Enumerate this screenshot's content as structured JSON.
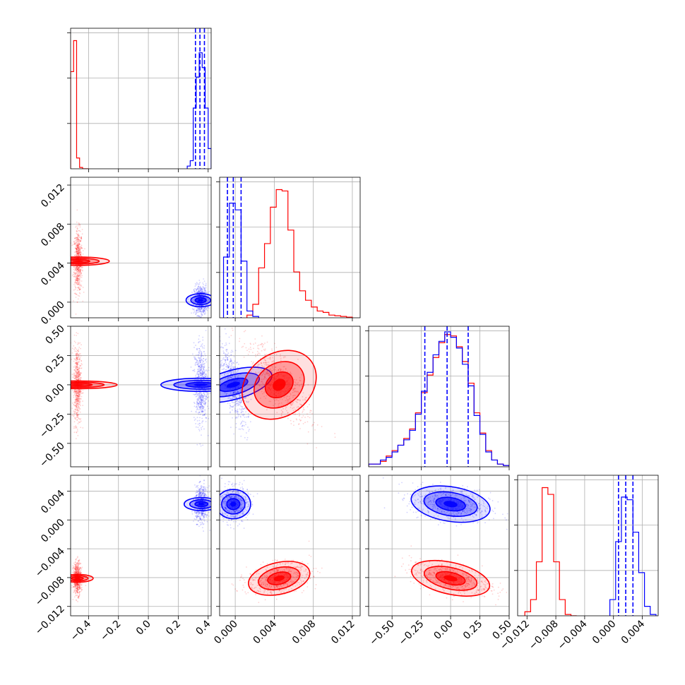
{
  "chart_data": {
    "type": "corner",
    "title": "",
    "grid": true,
    "series": [
      {
        "color": "#ff0000"
      },
      {
        "color": "#0000ff"
      }
    ],
    "parameters": [
      {
        "range": [
          -0.52,
          0.42
        ],
        "ticks": [
          -0.4,
          -0.2,
          0.0,
          0.2,
          0.4
        ],
        "tick_labels": [
          "−0.4",
          "−0.2",
          "0.0",
          "0.2",
          "0.4"
        ],
        "tick_labels_shown": true
      },
      {
        "range": [
          -0.0016,
          0.0128
        ],
        "ticks": [
          0.0,
          0.004,
          0.008,
          0.012
        ],
        "tick_labels": [
          "0.000",
          "0.004",
          "0.008",
          "0.012"
        ],
        "tick_labels_shown": true
      },
      {
        "range": [
          -0.7,
          0.5
        ],
        "ticks": [
          -0.5,
          -0.25,
          0.0,
          0.25,
          0.5
        ],
        "tick_labels": [
          "−0.50",
          "−0.25",
          "0.00",
          "0.25",
          "0.50"
        ],
        "tick_labels_shown": true
      },
      {
        "range": [
          -0.0133,
          0.0062
        ],
        "ticks": [
          -0.012,
          -0.008,
          -0.004,
          0.0,
          0.004
        ],
        "tick_labels": [
          "−0.012",
          "−0.008",
          "−0.004",
          "0.000",
          "0.004"
        ],
        "tick_labels_shown": true
      }
    ],
    "histograms": [
      {
        "param": 0,
        "ymax": 1.0,
        "series": [
          {
            "color": "#ff0000",
            "bins": [
              -0.52,
              -0.5,
              -0.48,
              -0.46,
              -0.44,
              -0.42,
              -0.4
            ],
            "values": [
              0.72,
              0.95,
              0.08,
              0.01,
              0.0,
              0.0
            ]
          },
          {
            "color": "#0000ff",
            "bins": [
              0.26,
              0.28,
              0.3,
              0.32,
              0.34,
              0.36,
              0.38,
              0.4,
              0.42
            ],
            "values": [
              0.02,
              0.06,
              0.45,
              0.68,
              0.86,
              0.75,
              0.45,
              0.15
            ]
          }
        ],
        "quantiles": [
          0.315,
          0.345,
          0.375
        ],
        "quantile_color": "#0000ff"
      },
      {
        "param": 1,
        "ymax": 1.0,
        "series": [
          {
            "color": "#ff0000",
            "bins": [
              0.0012,
              0.0018,
              0.0024,
              0.003,
              0.0036,
              0.0042,
              0.0048,
              0.0054,
              0.006,
              0.0066,
              0.0072,
              0.0078,
              0.0084,
              0.009,
              0.0096,
              0.0102,
              0.0108,
              0.0114,
              0.012
            ],
            "values": [
              0.02,
              0.1,
              0.37,
              0.55,
              0.82,
              0.95,
              0.94,
              0.65,
              0.34,
              0.2,
              0.13,
              0.08,
              0.05,
              0.04,
              0.02,
              0.015,
              0.01,
              0.005
            ]
          },
          {
            "color": "#0000ff",
            "bins": [
              -0.0012,
              -0.0006,
              0.0,
              0.0006,
              0.0012,
              0.0018,
              0.0024
            ],
            "values": [
              0.45,
              0.85,
              0.8,
              0.42,
              0.05,
              0.01
            ]
          }
        ],
        "quantiles": [
          -0.0008,
          -0.0002,
          0.0006
        ],
        "quantile_color": "#0000ff"
      },
      {
        "param": 2,
        "ymax": 1.0,
        "series": [
          {
            "color": "#ff0000",
            "bins": [
              -0.7,
              -0.6,
              -0.55,
              -0.5,
              -0.45,
              -0.4,
              -0.35,
              -0.3,
              -0.25,
              -0.2,
              -0.15,
              -0.1,
              -0.05,
              0.0,
              0.05,
              0.1,
              0.15,
              0.2,
              0.25,
              0.3,
              0.35,
              0.4,
              0.45,
              0.5
            ],
            "values": [
              0.02,
              0.04,
              0.08,
              0.12,
              0.16,
              0.21,
              0.28,
              0.4,
              0.55,
              0.68,
              0.81,
              0.92,
              0.98,
              0.97,
              0.89,
              0.78,
              0.62,
              0.4,
              0.25,
              0.12,
              0.05,
              0.02,
              0.01
            ]
          },
          {
            "color": "#0000ff",
            "bins": [
              -0.7,
              -0.6,
              -0.55,
              -0.5,
              -0.45,
              -0.4,
              -0.35,
              -0.3,
              -0.25,
              -0.2,
              -0.15,
              -0.1,
              -0.05,
              0.0,
              0.05,
              0.1,
              0.15,
              0.2,
              0.25,
              0.3,
              0.35,
              0.4,
              0.45,
              0.5
            ],
            "values": [
              0.02,
              0.05,
              0.07,
              0.11,
              0.16,
              0.2,
              0.27,
              0.39,
              0.56,
              0.7,
              0.83,
              0.93,
              1.0,
              0.96,
              0.88,
              0.76,
              0.6,
              0.38,
              0.24,
              0.11,
              0.05,
              0.02,
              0.01
            ]
          }
        ],
        "quantiles": [
          -0.22,
          -0.03,
          0.15
        ],
        "quantile_color": "#0000ff"
      },
      {
        "param": 3,
        "ymax": 1.0,
        "series": [
          {
            "color": "#ff0000",
            "bins": [
              -0.0123,
              -0.0115,
              -0.0107,
              -0.0099,
              -0.0091,
              -0.0083,
              -0.0075,
              -0.0067,
              -0.0059,
              -0.0051
            ],
            "values": [
              0.03,
              0.12,
              0.4,
              0.95,
              0.9,
              0.4,
              0.12,
              0.01,
              0.0
            ]
          },
          {
            "color": "#0000ff",
            "bins": [
              -0.0005,
              0.0003,
              0.0011,
              0.0019,
              0.0027,
              0.0035,
              0.0043,
              0.0051,
              0.0059
            ],
            "values": [
              0.12,
              0.55,
              0.88,
              0.86,
              0.62,
              0.32,
              0.07,
              0.01
            ]
          }
        ],
        "quantiles": [
          0.0007,
          0.0017,
          0.0027
        ],
        "quantile_color": "#0000ff"
      }
    ],
    "scatter_panels": [
      {
        "x_param": 0,
        "y_param": 1,
        "clouds": [
          {
            "color": "#ff0000",
            "center": [
              -0.47,
              0.0042
            ],
            "sd": [
              0.014,
              0.0016
            ],
            "corr": 0.0
          },
          {
            "color": "#0000ff",
            "center": [
              0.35,
              0.0002
            ],
            "sd": [
              0.022,
              0.00075
            ],
            "corr": 0.0
          }
        ]
      },
      {
        "x_param": 0,
        "y_param": 2,
        "clouds": [
          {
            "color": "#ff0000",
            "center": [
              -0.475,
              0.0
            ],
            "sd": [
              0.013,
              0.17
            ],
            "corr": 0.0
          },
          {
            "color": "#0000ff",
            "center": [
              0.35,
              0.0
            ],
            "sd": [
              0.022,
              0.17
            ],
            "corr": 0.0
          }
        ]
      },
      {
        "x_param": 0,
        "y_param": 3,
        "clouds": [
          {
            "color": "#0000ff",
            "center": [
              0.355,
              0.0022
            ],
            "sd": [
              0.022,
              0.0012
            ],
            "corr": 0.0
          },
          {
            "color": "#ff0000",
            "center": [
              -0.475,
              -0.0081
            ],
            "sd": [
              0.013,
              0.0011
            ],
            "corr": 0.0
          }
        ]
      },
      {
        "x_param": 1,
        "y_param": 2,
        "clouds": [
          {
            "color": "#0000ff",
            "center": [
              -0.0002,
              0.0
            ],
            "sd": [
              0.00075,
              0.17
            ],
            "corr": -0.7
          },
          {
            "color": "#ff0000",
            "center": [
              0.0045,
              0.0
            ],
            "sd": [
              0.0016,
              0.17
            ],
            "corr": -0.75
          }
        ]
      },
      {
        "x_param": 1,
        "y_param": 3,
        "clouds": [
          {
            "color": "#0000ff",
            "center": [
              -0.0002,
              0.0022
            ],
            "sd": [
              0.00075,
              0.0012
            ],
            "corr": 0.0
          },
          {
            "color": "#ff0000",
            "center": [
              0.0045,
              -0.0081
            ],
            "sd": [
              0.0016,
              0.0011
            ],
            "corr": 0.35
          }
        ]
      },
      {
        "x_param": 2,
        "y_param": 3,
        "clouds": [
          {
            "color": "#0000ff",
            "center": [
              0.0,
              0.0022
            ],
            "sd": [
              0.17,
              0.0012
            ],
            "corr": -0.3
          },
          {
            "color": "#ff0000",
            "center": [
              0.0,
              -0.0081
            ],
            "sd": [
              0.17,
              0.0011
            ],
            "corr": -0.5
          }
        ]
      }
    ]
  }
}
